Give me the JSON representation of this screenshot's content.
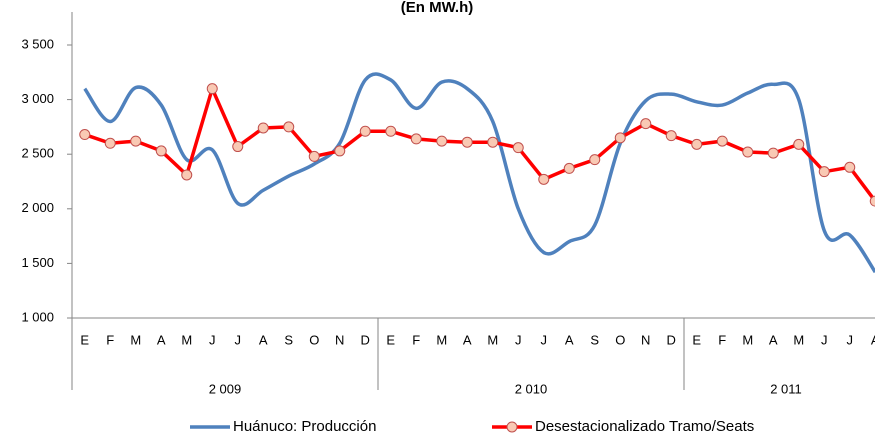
{
  "chart_data": {
    "type": "line",
    "title": "(En MW.h)",
    "categories": [
      "E",
      "F",
      "M",
      "A",
      "M",
      "J",
      "J",
      "A",
      "S",
      "O",
      "N",
      "D",
      "E",
      "F",
      "M",
      "A",
      "M",
      "J",
      "J",
      "A",
      "S",
      "O",
      "N",
      "D",
      "E",
      "F",
      "M",
      "A",
      "M",
      "J",
      "J",
      "A"
    ],
    "groups": [
      "2 009",
      "2 010",
      "2 011"
    ],
    "series": [
      {
        "name": "Huánuco: Producción",
        "color": "#4f81bd",
        "smooth": true,
        "markers": false,
        "values": [
          3100,
          2800,
          3110,
          2950,
          2450,
          2540,
          2050,
          2170,
          2300,
          2410,
          2600,
          3180,
          3180,
          2920,
          3160,
          3100,
          2800,
          2000,
          1600,
          1700,
          1850,
          2600,
          2990,
          3050,
          2980,
          2950,
          3060,
          3140,
          3000,
          1800,
          1760,
          1420
        ]
      },
      {
        "name": "Desestacionalizado Tramo/Seats",
        "color": "#ff0000",
        "smooth": false,
        "markers": true,
        "marker_fill": "#f9c9b4",
        "marker_stroke": "#c0504d",
        "values": [
          2680,
          2600,
          2620,
          2530,
          2310,
          3100,
          2570,
          2740,
          2750,
          2480,
          2530,
          2710,
          2710,
          2640,
          2620,
          2610,
          2610,
          2560,
          2270,
          2370,
          2450,
          2650,
          2780,
          2670,
          2590,
          2620,
          2520,
          2510,
          2590,
          2340,
          2380,
          2070
        ]
      }
    ],
    "ylim": [
      1000,
      3500
    ],
    "yticks": [
      {
        "value": 1000,
        "label": "1 000"
      },
      {
        "value": 1500,
        "label": "1 500"
      },
      {
        "value": 2000,
        "label": "2 000"
      },
      {
        "value": 2500,
        "label": "2 500"
      },
      {
        "value": 3000,
        "label": "3 000"
      },
      {
        "value": 3500,
        "label": "3 500"
      }
    ],
    "grid": false,
    "legend": "bottom"
  }
}
